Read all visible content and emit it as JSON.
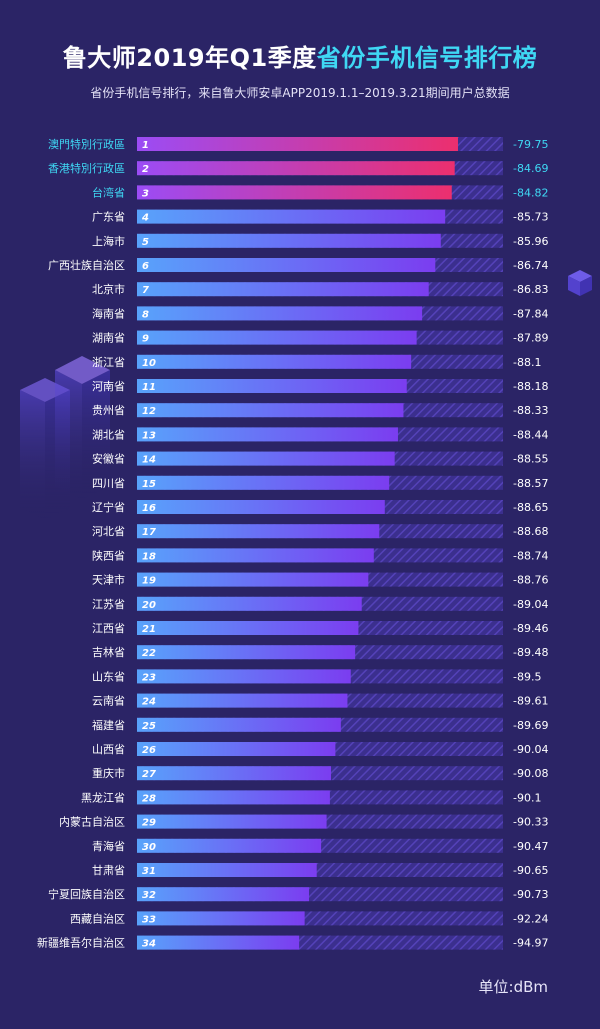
{
  "header": {
    "title_main": "鲁大师2019年Q1季度",
    "title_highlight": "省份手机信号排行榜",
    "subtitle": "省份手机信号排行，来自鲁大师安卓APP2019.1.1–2019.3.21期间用户总数据"
  },
  "unit_label": "单位:dBm",
  "colors": {
    "background": "#2b2466",
    "highlight_text": "#3fd8f4",
    "top_bar_start": "#9b4cf5",
    "top_bar_end": "#ec2f6e",
    "bar_start": "#58a3fb",
    "bar_end": "#7b3df0",
    "track": "#4a3aa8"
  },
  "chart_data": {
    "type": "bar",
    "orientation": "horizontal",
    "categories": [
      "澳門特別行政區",
      "香港特別行政區",
      "台湾省",
      "广东省",
      "上海市",
      "广西壮族自治区",
      "北京市",
      "海南省",
      "湖南省",
      "浙江省",
      "河南省",
      "贵州省",
      "湖北省",
      "安徽省",
      "四川省",
      "辽宁省",
      "河北省",
      "陕西省",
      "天津市",
      "江苏省",
      "江西省",
      "吉林省",
      "山东省",
      "云南省",
      "福建省",
      "山西省",
      "重庆市",
      "黑龙江省",
      "内蒙古自治区",
      "青海省",
      "甘肃省",
      "宁夏回族自治区",
      "西藏自治区",
      "新疆维吾尔自治区"
    ],
    "ranks": [
      "1",
      "2",
      "3",
      "4",
      "5",
      "6",
      "7",
      "8",
      "9",
      "10",
      "11",
      "12",
      "13",
      "14",
      "15",
      "16",
      "17",
      "18",
      "19",
      "20",
      "21",
      "22",
      "23",
      "24",
      "25",
      "26",
      "27",
      "28",
      "29",
      "30",
      "31",
      "32",
      "33",
      "34"
    ],
    "values": [
      -79.75,
      -84.69,
      -84.82,
      -85.73,
      -85.96,
      -86.74,
      -86.83,
      -87.84,
      -87.89,
      -88.1,
      -88.18,
      -88.33,
      -88.44,
      -88.55,
      -88.57,
      -88.65,
      -88.68,
      -88.74,
      -88.76,
      -89.04,
      -89.46,
      -89.48,
      -89.5,
      -89.61,
      -89.69,
      -90.04,
      -90.08,
      -90.1,
      -90.33,
      -90.47,
      -90.65,
      -90.73,
      -92.24,
      -94.97
    ],
    "value_labels": [
      "-79.75",
      "-84.69",
      "-84.82",
      "-85.73",
      "-85.96",
      "-86.74",
      "-86.83",
      "-87.84",
      "-87.89",
      "-88.1",
      "-88.18",
      "-88.33",
      "-88.44",
      "-88.55",
      "-88.57",
      "-88.65",
      "-88.68",
      "-88.74",
      "-88.76",
      "-89.04",
      "-89.46",
      "-89.48",
      "-89.5",
      "-89.61",
      "-89.69",
      "-90.04",
      "-90.08",
      "-90.1",
      "-90.33",
      "-90.47",
      "-90.65",
      "-90.73",
      "-92.24",
      "-94.97"
    ],
    "highlight_count": 3,
    "fill_fraction": [
      0.877,
      0.868,
      0.86,
      0.842,
      0.83,
      0.815,
      0.797,
      0.779,
      0.764,
      0.749,
      0.737,
      0.728,
      0.713,
      0.704,
      0.689,
      0.677,
      0.662,
      0.647,
      0.632,
      0.614,
      0.605,
      0.596,
      0.584,
      0.575,
      0.557,
      0.542,
      0.53,
      0.527,
      0.518,
      0.503,
      0.491,
      0.47,
      0.458,
      0.443
    ],
    "grid": false,
    "legend": "none"
  }
}
